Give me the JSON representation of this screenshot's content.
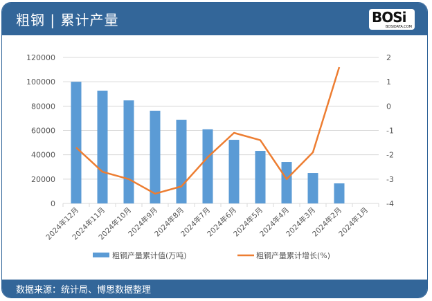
{
  "header": {
    "title": "粗钢 | 累计产量",
    "logo_text": "BOSi",
    "logo_sub": "BOSIDATA.COM"
  },
  "footer": {
    "source": "数据来源：统计局、博思数据整理"
  },
  "colors": {
    "header": "#336699",
    "bar": "#5b9bd5",
    "line": "#ed7d31"
  },
  "chart_data": {
    "type": "bar+line",
    "categories": [
      "2024年12月",
      "2024年11月",
      "2024年10月",
      "2024年9月",
      "2024年8月",
      "2024年7月",
      "2024年6月",
      "2024年5月",
      "2024年4月",
      "2024年3月",
      "2024年2月",
      "2024年1月"
    ],
    "series": [
      {
        "name": "粗钢产量累计值(万吨)",
        "type": "bar",
        "axis": "left",
        "values": [
          100000,
          92700,
          84700,
          76200,
          68800,
          60900,
          52300,
          43200,
          34100,
          25000,
          16500,
          null
        ]
      },
      {
        "name": "粗钢产量累计增长(%)",
        "type": "line",
        "axis": "right",
        "values": [
          -1.7,
          -2.7,
          -3.0,
          -3.6,
          -3.3,
          -2.1,
          -1.1,
          -1.4,
          -3.0,
          -1.9,
          1.6,
          null
        ]
      }
    ],
    "y_left": {
      "min": 0,
      "max": 120000,
      "ticks": [
        0,
        20000,
        40000,
        60000,
        80000,
        100000,
        120000
      ]
    },
    "y_right": {
      "min": -4,
      "max": 2,
      "ticks": [
        -4,
        -3,
        -2,
        -1,
        0,
        1,
        2
      ]
    },
    "grid": true,
    "legend": "bottom"
  }
}
